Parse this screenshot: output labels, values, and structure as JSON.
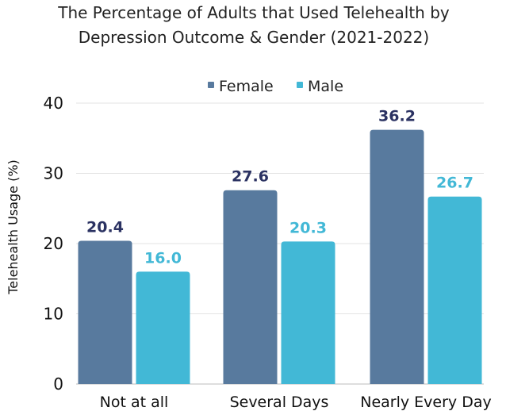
{
  "chart_data": {
    "type": "bar",
    "title_lines": [
      "The Percentage of Adults that Used Telehealth by",
      "Depression Outcome & Gender (2021-2022)"
    ],
    "xlabel": "",
    "ylabel": "Telehealth Usage (%)",
    "ylim": [
      0,
      40
    ],
    "yticks": [
      0,
      10,
      20,
      30,
      40
    ],
    "grid": true,
    "legend_position": "top-center",
    "categories": [
      "Not at all",
      "Several Days",
      "Nearly Every Day"
    ],
    "series": [
      {
        "name": "Female",
        "color": "#587a9e",
        "label_color": "#2b3262",
        "values": [
          20.4,
          27.6,
          36.2
        ],
        "value_labels": [
          "20.4",
          "27.6",
          "36.2"
        ]
      },
      {
        "name": "Male",
        "color": "#42b8d6",
        "label_color": "#42b8d6",
        "values": [
          16.0,
          20.3,
          26.7
        ],
        "value_labels": [
          "16.0",
          "20.3",
          "26.7"
        ]
      }
    ]
  }
}
